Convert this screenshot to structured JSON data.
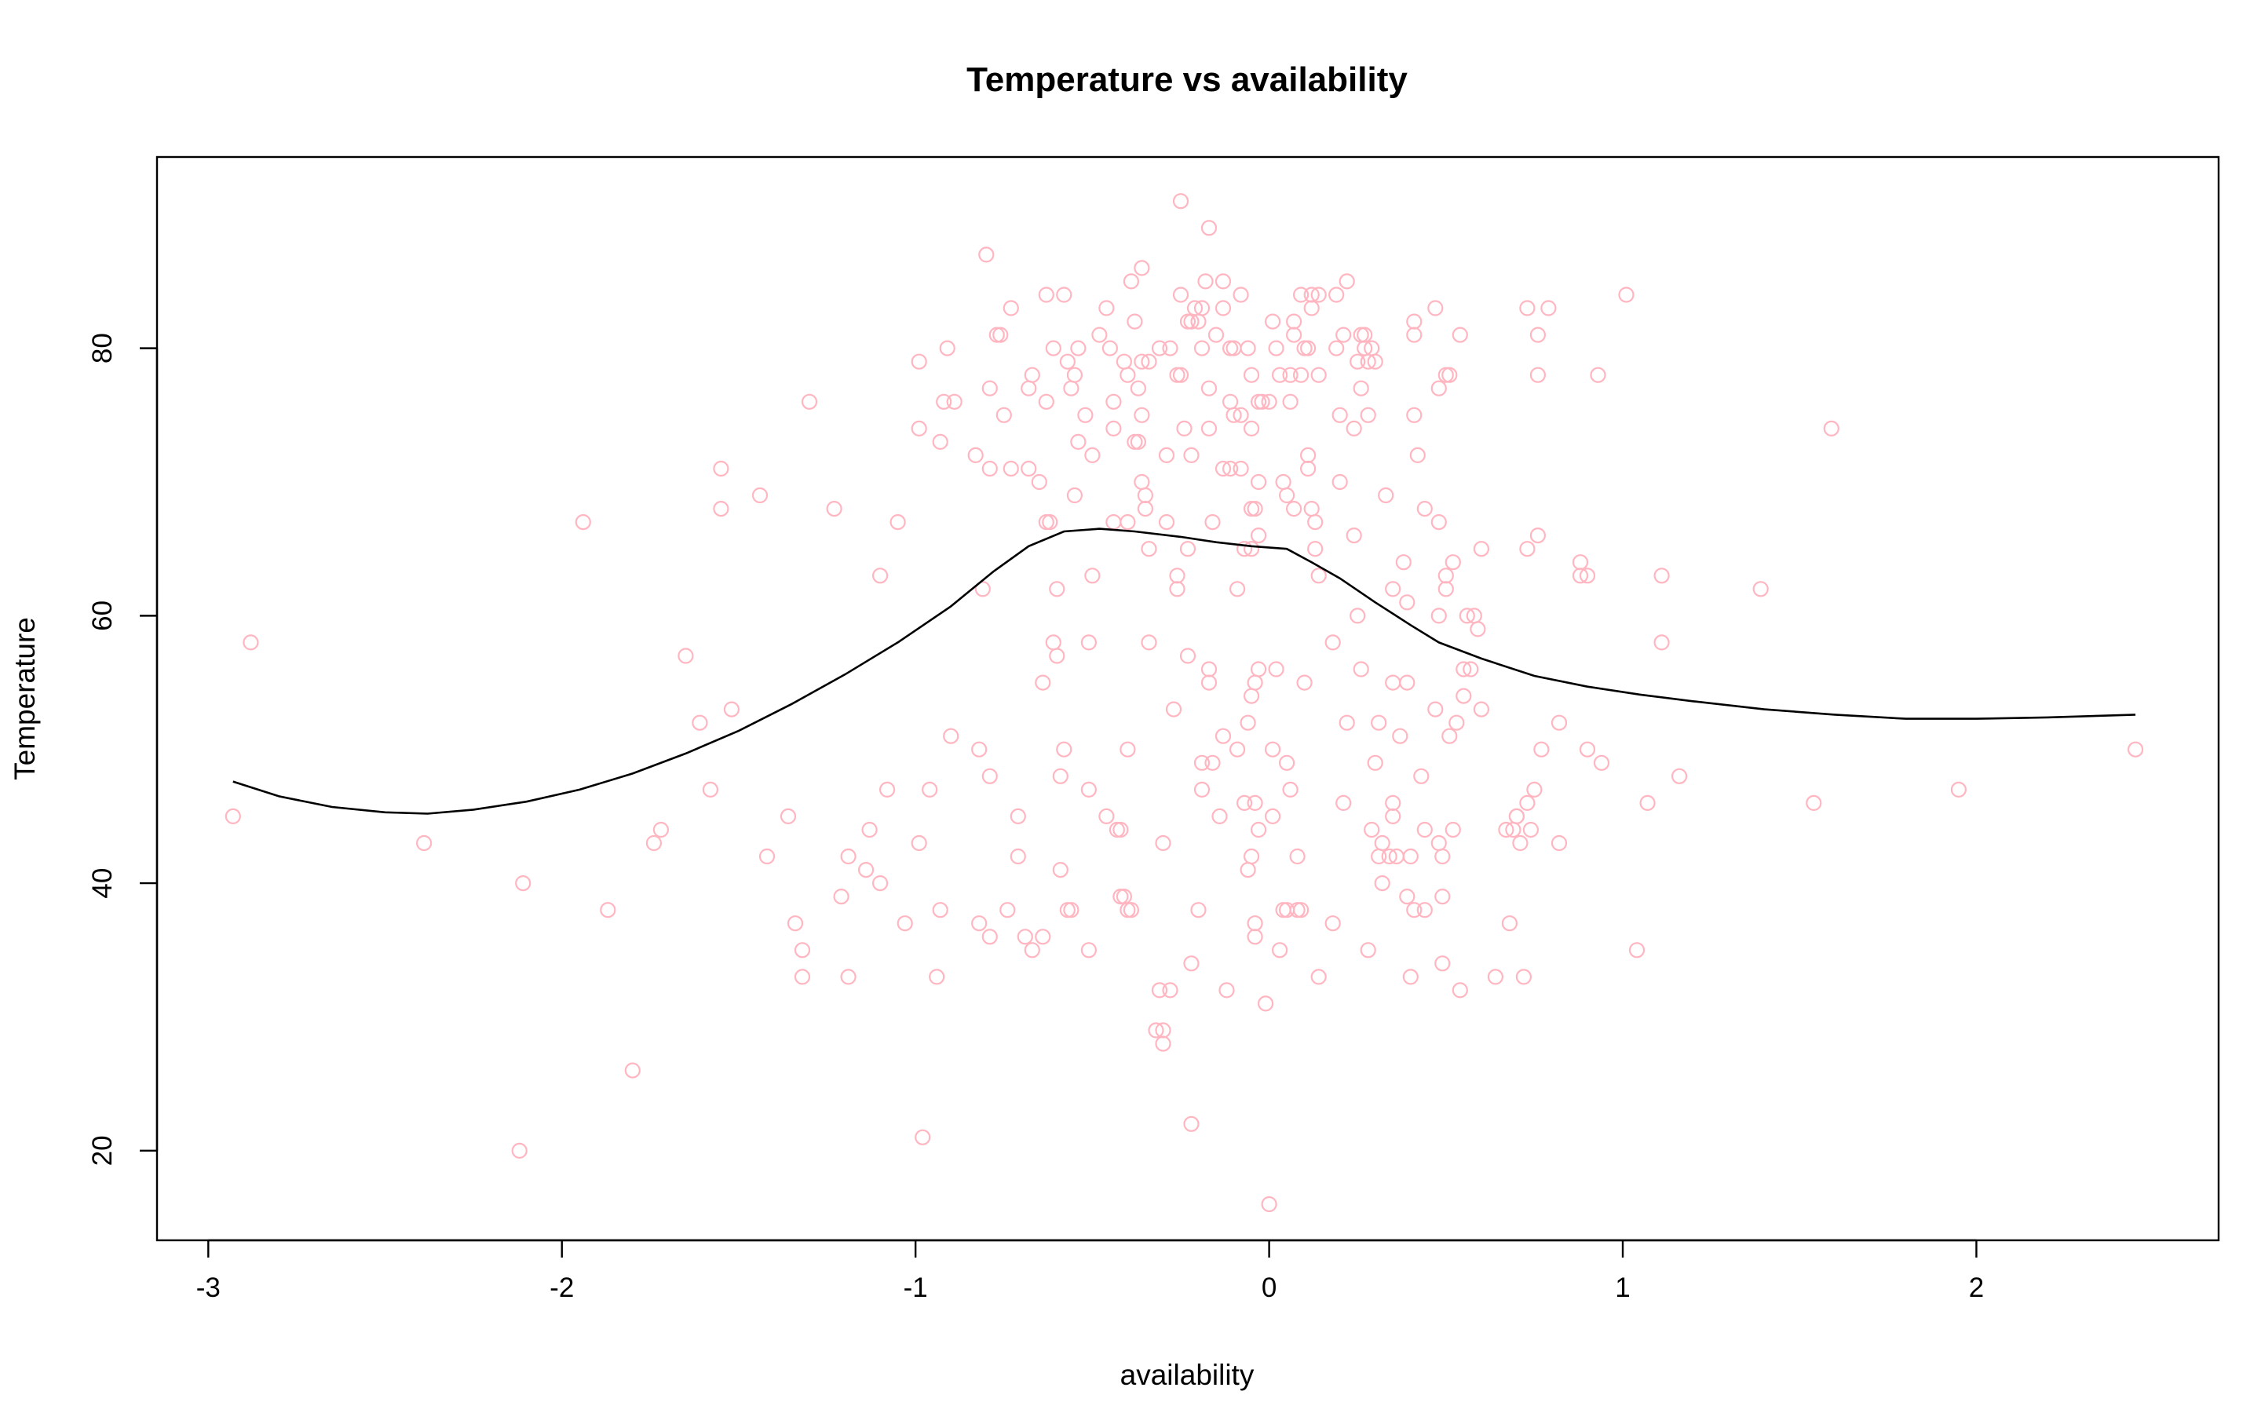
{
  "chart_data": {
    "type": "scatter",
    "title": "Temperature vs availability",
    "xlabel": "availability",
    "ylabel": "Temperature",
    "xlim": [
      -3.145,
      2.685
    ],
    "ylim": [
      13.3,
      94.3
    ],
    "xticks": [
      -3,
      -2,
      -1,
      0,
      1,
      2
    ],
    "yticks": [
      20,
      40,
      60,
      80
    ],
    "grid": false,
    "legend": "none",
    "colors": {
      "points": "#ffb6c1",
      "line": "#000000",
      "frame": "#000000"
    },
    "points": [
      [
        -2.93,
        45
      ],
      [
        -2.88,
        58
      ],
      [
        -2.39,
        43
      ],
      [
        -2.12,
        20
      ],
      [
        -2.11,
        40
      ],
      [
        -1.94,
        67
      ],
      [
        -1.87,
        38
      ],
      [
        -1.8,
        26
      ],
      [
        -1.74,
        43
      ],
      [
        -1.72,
        44
      ],
      [
        -1.65,
        57
      ],
      [
        -1.61,
        52
      ],
      [
        -1.58,
        47
      ],
      [
        -1.55,
        71
      ],
      [
        -1.55,
        68
      ],
      [
        -1.52,
        53
      ],
      [
        -1.44,
        69
      ],
      [
        -1.42,
        42
      ],
      [
        -1.36,
        45
      ],
      [
        -1.34,
        37
      ],
      [
        -1.32,
        35
      ],
      [
        -1.32,
        33
      ],
      [
        -1.3,
        76
      ],
      [
        -1.23,
        68
      ],
      [
        -1.21,
        39
      ],
      [
        -1.19,
        33
      ],
      [
        -1.19,
        42
      ],
      [
        -1.14,
        41
      ],
      [
        -1.13,
        44
      ],
      [
        -1.1,
        63
      ],
      [
        -1.1,
        40
      ],
      [
        -1.08,
        47
      ],
      [
        -1.05,
        67
      ],
      [
        -1.03,
        37
      ],
      [
        -0.99,
        79
      ],
      [
        -0.99,
        74
      ],
      [
        -0.99,
        43
      ],
      [
        -0.98,
        21
      ],
      [
        -0.96,
        47
      ],
      [
        -0.94,
        33
      ],
      [
        -0.93,
        73
      ],
      [
        -0.93,
        38
      ],
      [
        -0.92,
        76
      ],
      [
        -0.91,
        80
      ],
      [
        -0.9,
        51
      ],
      [
        -0.89,
        76
      ],
      [
        -0.83,
        72
      ],
      [
        -0.82,
        50
      ],
      [
        -0.82,
        37
      ],
      [
        -0.81,
        62
      ],
      [
        -0.8,
        87
      ],
      [
        -0.79,
        77
      ],
      [
        -0.79,
        71
      ],
      [
        -0.79,
        48
      ],
      [
        -0.79,
        36
      ],
      [
        -0.77,
        81
      ],
      [
        -0.76,
        81
      ],
      [
        -0.75,
        75
      ],
      [
        -0.74,
        38
      ],
      [
        -0.73,
        83
      ],
      [
        -0.73,
        71
      ],
      [
        -0.71,
        45
      ],
      [
        -0.71,
        42
      ],
      [
        -0.69,
        36
      ],
      [
        -0.68,
        71
      ],
      [
        -0.68,
        77
      ],
      [
        -0.67,
        35
      ],
      [
        -0.67,
        78
      ],
      [
        -0.65,
        70
      ],
      [
        -0.64,
        36
      ],
      [
        -0.64,
        55
      ],
      [
        -0.63,
        84
      ],
      [
        -0.63,
        67
      ],
      [
        -0.63,
        76
      ],
      [
        -0.62,
        67
      ],
      [
        -0.61,
        80
      ],
      [
        -0.61,
        58
      ],
      [
        -0.6,
        62
      ],
      [
        -0.6,
        57
      ],
      [
        -0.59,
        48
      ],
      [
        -0.59,
        41
      ],
      [
        -0.58,
        84
      ],
      [
        -0.58,
        50
      ],
      [
        -0.57,
        79
      ],
      [
        -0.57,
        38
      ],
      [
        -0.56,
        38
      ],
      [
        -0.56,
        77
      ],
      [
        -0.55,
        78
      ],
      [
        -0.55,
        69
      ],
      [
        -0.54,
        80
      ],
      [
        -0.54,
        73
      ],
      [
        -0.52,
        75
      ],
      [
        -0.51,
        47
      ],
      [
        -0.51,
        58
      ],
      [
        -0.51,
        35
      ],
      [
        -0.5,
        72
      ],
      [
        -0.5,
        63
      ],
      [
        -0.48,
        81
      ],
      [
        -0.46,
        83
      ],
      [
        -0.46,
        45
      ],
      [
        -0.45,
        80
      ],
      [
        -0.44,
        67
      ],
      [
        -0.44,
        76
      ],
      [
        -0.44,
        74
      ],
      [
        -0.43,
        44
      ],
      [
        -0.42,
        44
      ],
      [
        -0.42,
        39
      ],
      [
        -0.41,
        79
      ],
      [
        -0.41,
        39
      ],
      [
        -0.4,
        38
      ],
      [
        -0.4,
        67
      ],
      [
        -0.4,
        50
      ],
      [
        -0.4,
        78
      ],
      [
        -0.39,
        38
      ],
      [
        -0.39,
        85
      ],
      [
        -0.38,
        82
      ],
      [
        -0.38,
        73
      ],
      [
        -0.37,
        77
      ],
      [
        -0.37,
        73
      ],
      [
        -0.36,
        79
      ],
      [
        -0.36,
        70
      ],
      [
        -0.36,
        86
      ],
      [
        -0.36,
        75
      ],
      [
        -0.35,
        69
      ],
      [
        -0.35,
        68
      ],
      [
        -0.34,
        79
      ],
      [
        -0.34,
        65
      ],
      [
        -0.34,
        58
      ],
      [
        -0.32,
        29
      ],
      [
        -0.31,
        32
      ],
      [
        -0.31,
        80
      ],
      [
        -0.3,
        43
      ],
      [
        -0.3,
        29
      ],
      [
        -0.3,
        28
      ],
      [
        -0.29,
        67
      ],
      [
        -0.29,
        72
      ],
      [
        -0.28,
        80
      ],
      [
        -0.28,
        32
      ],
      [
        -0.27,
        53
      ],
      [
        -0.26,
        78
      ],
      [
        -0.26,
        63
      ],
      [
        -0.26,
        62
      ],
      [
        -0.25,
        91
      ],
      [
        -0.25,
        84
      ],
      [
        -0.25,
        78
      ],
      [
        -0.24,
        74
      ],
      [
        -0.23,
        57
      ],
      [
        -0.23,
        65
      ],
      [
        -0.23,
        82
      ],
      [
        -0.22,
        72
      ],
      [
        -0.22,
        22
      ],
      [
        -0.22,
        82
      ],
      [
        -0.22,
        34
      ],
      [
        -0.21,
        83
      ],
      [
        -0.2,
        82
      ],
      [
        -0.2,
        38
      ],
      [
        -0.19,
        83
      ],
      [
        -0.19,
        49
      ],
      [
        -0.19,
        80
      ],
      [
        -0.19,
        47
      ],
      [
        -0.18,
        85
      ],
      [
        -0.17,
        89
      ],
      [
        -0.17,
        77
      ],
      [
        -0.17,
        74
      ],
      [
        -0.17,
        56
      ],
      [
        -0.17,
        55
      ],
      [
        -0.16,
        49
      ],
      [
        -0.16,
        67
      ],
      [
        -0.15,
        81
      ],
      [
        -0.14,
        45
      ],
      [
        -0.13,
        83
      ],
      [
        -0.13,
        85
      ],
      [
        -0.13,
        71
      ],
      [
        -0.13,
        51
      ],
      [
        -0.12,
        32
      ],
      [
        -0.11,
        80
      ],
      [
        -0.11,
        71
      ],
      [
        -0.11,
        76
      ],
      [
        -0.1,
        75
      ],
      [
        -0.1,
        80
      ],
      [
        -0.09,
        50
      ],
      [
        -0.09,
        62
      ],
      [
        -0.08,
        71
      ],
      [
        -0.08,
        84
      ],
      [
        -0.08,
        75
      ],
      [
        -0.07,
        46
      ],
      [
        -0.07,
        65
      ],
      [
        -0.06,
        80
      ],
      [
        -0.06,
        52
      ],
      [
        -0.06,
        41
      ],
      [
        -0.05,
        78
      ],
      [
        -0.05,
        74
      ],
      [
        -0.05,
        68
      ],
      [
        -0.05,
        42
      ],
      [
        -0.05,
        54
      ],
      [
        -0.05,
        65
      ],
      [
        -0.04,
        68
      ],
      [
        -0.04,
        55
      ],
      [
        -0.04,
        37
      ],
      [
        -0.04,
        36
      ],
      [
        -0.04,
        46
      ],
      [
        -0.03,
        76
      ],
      [
        -0.03,
        70
      ],
      [
        -0.03,
        66
      ],
      [
        -0.03,
        56
      ],
      [
        -0.03,
        44
      ],
      [
        -0.02,
        76
      ],
      [
        -0.01,
        31
      ],
      [
        0.0,
        16
      ],
      [
        0.0,
        76
      ],
      [
        0.01,
        82
      ],
      [
        0.01,
        50
      ],
      [
        0.01,
        45
      ],
      [
        0.02,
        56
      ],
      [
        0.02,
        80
      ],
      [
        0.03,
        35
      ],
      [
        0.03,
        78
      ],
      [
        0.04,
        70
      ],
      [
        0.04,
        38
      ],
      [
        0.05,
        69
      ],
      [
        0.05,
        38
      ],
      [
        0.05,
        49
      ],
      [
        0.06,
        47
      ],
      [
        0.06,
        76
      ],
      [
        0.06,
        78
      ],
      [
        0.07,
        81
      ],
      [
        0.07,
        82
      ],
      [
        0.07,
        68
      ],
      [
        0.08,
        38
      ],
      [
        0.08,
        42
      ],
      [
        0.09,
        84
      ],
      [
        0.09,
        78
      ],
      [
        0.09,
        38
      ],
      [
        0.1,
        55
      ],
      [
        0.1,
        80
      ],
      [
        0.11,
        72
      ],
      [
        0.11,
        71
      ],
      [
        0.11,
        80
      ],
      [
        0.12,
        84
      ],
      [
        0.12,
        83
      ],
      [
        0.12,
        68
      ],
      [
        0.13,
        65
      ],
      [
        0.13,
        67
      ],
      [
        0.14,
        63
      ],
      [
        0.14,
        84
      ],
      [
        0.14,
        78
      ],
      [
        0.14,
        33
      ],
      [
        0.18,
        58
      ],
      [
        0.18,
        37
      ],
      [
        0.19,
        80
      ],
      [
        0.19,
        84
      ],
      [
        0.2,
        75
      ],
      [
        0.2,
        70
      ],
      [
        0.21,
        46
      ],
      [
        0.21,
        81
      ],
      [
        0.22,
        52
      ],
      [
        0.22,
        85
      ],
      [
        0.24,
        74
      ],
      [
        0.24,
        66
      ],
      [
        0.25,
        79
      ],
      [
        0.25,
        60
      ],
      [
        0.26,
        77
      ],
      [
        0.26,
        56
      ],
      [
        0.26,
        81
      ],
      [
        0.27,
        80
      ],
      [
        0.27,
        81
      ],
      [
        0.28,
        79
      ],
      [
        0.28,
        75
      ],
      [
        0.28,
        35
      ],
      [
        0.29,
        44
      ],
      [
        0.29,
        80
      ],
      [
        0.3,
        49
      ],
      [
        0.3,
        79
      ],
      [
        0.31,
        42
      ],
      [
        0.31,
        52
      ],
      [
        0.32,
        40
      ],
      [
        0.32,
        43
      ],
      [
        0.33,
        69
      ],
      [
        0.34,
        42
      ],
      [
        0.35,
        45
      ],
      [
        0.35,
        46
      ],
      [
        0.35,
        62
      ],
      [
        0.35,
        55
      ],
      [
        0.36,
        42
      ],
      [
        0.37,
        51
      ],
      [
        0.38,
        64
      ],
      [
        0.39,
        39
      ],
      [
        0.39,
        61
      ],
      [
        0.39,
        55
      ],
      [
        0.4,
        42
      ],
      [
        0.4,
        33
      ],
      [
        0.41,
        81
      ],
      [
        0.41,
        82
      ],
      [
        0.41,
        75
      ],
      [
        0.41,
        38
      ],
      [
        0.42,
        72
      ],
      [
        0.43,
        48
      ],
      [
        0.44,
        44
      ],
      [
        0.44,
        68
      ],
      [
        0.44,
        38
      ],
      [
        0.47,
        53
      ],
      [
        0.47,
        83
      ],
      [
        0.48,
        77
      ],
      [
        0.48,
        67
      ],
      [
        0.48,
        60
      ],
      [
        0.48,
        43
      ],
      [
        0.49,
        42
      ],
      [
        0.49,
        34
      ],
      [
        0.49,
        39
      ],
      [
        0.5,
        62
      ],
      [
        0.5,
        63
      ],
      [
        0.5,
        78
      ],
      [
        0.51,
        78
      ],
      [
        0.51,
        51
      ],
      [
        0.52,
        44
      ],
      [
        0.52,
        64
      ],
      [
        0.53,
        52
      ],
      [
        0.54,
        81
      ],
      [
        0.54,
        32
      ],
      [
        0.55,
        54
      ],
      [
        0.55,
        56
      ],
      [
        0.56,
        60
      ],
      [
        0.57,
        56
      ],
      [
        0.58,
        60
      ],
      [
        0.59,
        59
      ],
      [
        0.6,
        65
      ],
      [
        0.6,
        53
      ],
      [
        0.64,
        33
      ],
      [
        0.67,
        44
      ],
      [
        0.68,
        37
      ],
      [
        0.69,
        44
      ],
      [
        0.7,
        45
      ],
      [
        0.7,
        45
      ],
      [
        0.71,
        43
      ],
      [
        0.72,
        33
      ],
      [
        0.73,
        46
      ],
      [
        0.73,
        83
      ],
      [
        0.73,
        65
      ],
      [
        0.74,
        44
      ],
      [
        0.75,
        47
      ],
      [
        0.76,
        66
      ],
      [
        0.76,
        81
      ],
      [
        0.76,
        78
      ],
      [
        0.77,
        50
      ],
      [
        0.79,
        83
      ],
      [
        0.82,
        52
      ],
      [
        0.82,
        43
      ],
      [
        0.88,
        64
      ],
      [
        0.88,
        63
      ],
      [
        0.9,
        50
      ],
      [
        0.9,
        63
      ],
      [
        0.93,
        78
      ],
      [
        0.94,
        49
      ],
      [
        1.01,
        84
      ],
      [
        1.04,
        35
      ],
      [
        1.07,
        46
      ],
      [
        1.11,
        63
      ],
      [
        1.11,
        58
      ],
      [
        1.16,
        48
      ],
      [
        1.39,
        62
      ],
      [
        1.54,
        46
      ],
      [
        1.59,
        74
      ],
      [
        1.95,
        47
      ],
      [
        2.45,
        50
      ]
    ],
    "smooth_line": [
      [
        -2.93,
        47.6
      ],
      [
        -2.8,
        46.5
      ],
      [
        -2.65,
        45.7
      ],
      [
        -2.5,
        45.3
      ],
      [
        -2.38,
        45.2
      ],
      [
        -2.25,
        45.5
      ],
      [
        -2.1,
        46.1
      ],
      [
        -1.95,
        47.0
      ],
      [
        -1.8,
        48.2
      ],
      [
        -1.65,
        49.7
      ],
      [
        -1.5,
        51.4
      ],
      [
        -1.35,
        53.4
      ],
      [
        -1.2,
        55.6
      ],
      [
        -1.05,
        58.0
      ],
      [
        -0.9,
        60.7
      ],
      [
        -0.78,
        63.3
      ],
      [
        -0.68,
        65.2
      ],
      [
        -0.58,
        66.3
      ],
      [
        -0.48,
        66.5
      ],
      [
        -0.38,
        66.3
      ],
      [
        -0.25,
        65.9
      ],
      [
        -0.15,
        65.5
      ],
      [
        -0.05,
        65.2
      ],
      [
        0.05,
        65.0
      ],
      [
        0.12,
        64.0
      ],
      [
        0.2,
        62.8
      ],
      [
        0.3,
        61.0
      ],
      [
        0.4,
        59.3
      ],
      [
        0.48,
        58.0
      ],
      [
        0.6,
        56.8
      ],
      [
        0.75,
        55.5
      ],
      [
        0.9,
        54.7
      ],
      [
        1.05,
        54.1
      ],
      [
        1.2,
        53.6
      ],
      [
        1.4,
        53.0
      ],
      [
        1.6,
        52.6
      ],
      [
        1.8,
        52.3
      ],
      [
        2.0,
        52.3
      ],
      [
        2.2,
        52.4
      ],
      [
        2.45,
        52.6
      ]
    ]
  }
}
